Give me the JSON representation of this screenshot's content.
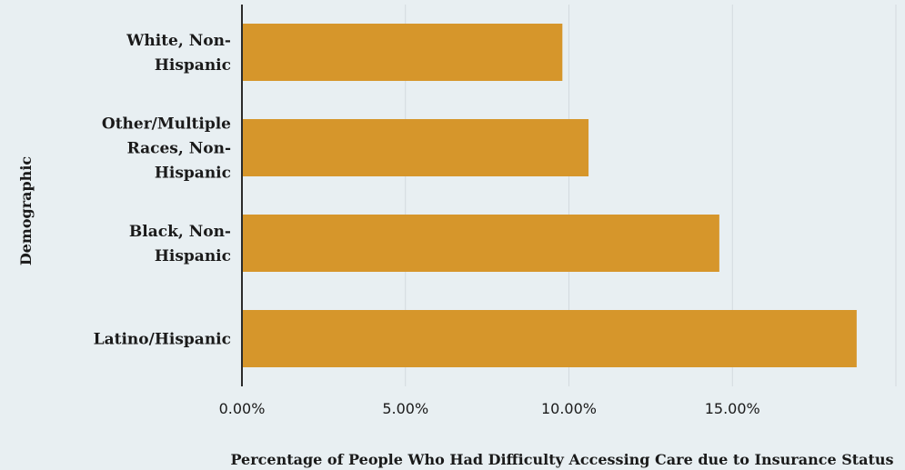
{
  "chart_data": {
    "type": "bar",
    "orientation": "horizontal",
    "categories": [
      [
        "White, Non-",
        "Hispanic"
      ],
      [
        "Other/Multiple",
        "Races, Non-",
        "Hispanic"
      ],
      [
        "Black, Non-",
        "Hispanic"
      ],
      [
        "Latino/Hispanic"
      ]
    ],
    "values": [
      9.8,
      10.6,
      14.6,
      18.8
    ],
    "xlim": [
      0,
      20
    ],
    "xticks": [
      0,
      5,
      10,
      15
    ],
    "xtick_labels": [
      "0.00%",
      "5.00%",
      "10.00%",
      "15.00%"
    ],
    "xlabel": "Percentage of People Who Had Difficulty Accessing Care due to Insurance Status",
    "ylabel": "Demographic",
    "grid": "vertical",
    "colors": {
      "bar": "#d6962b",
      "background": "#e8eff2",
      "grid": "#d3dade",
      "axis": "#2b2b2b"
    }
  }
}
